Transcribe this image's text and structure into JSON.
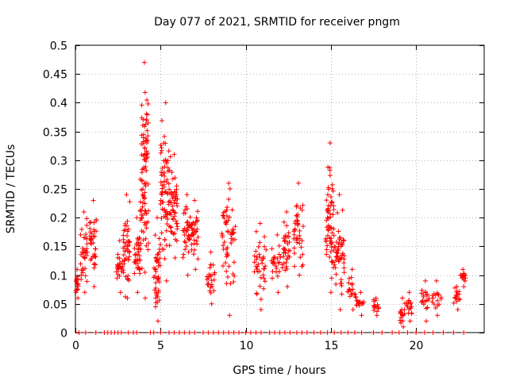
{
  "chart_data": {
    "type": "scatter",
    "title": "Day 077 of 2021, SRMTID for receiver pngm",
    "xlabel": "GPS time / hours",
    "ylabel": "SRMTID / TECUs",
    "xlim": [
      0,
      24
    ],
    "ylim": [
      0,
      0.5
    ],
    "xticks": [
      0,
      5,
      10,
      15,
      20
    ],
    "yticks": [
      0,
      0.05,
      0.1,
      0.15,
      0.2,
      0.25,
      0.3,
      0.35,
      0.4,
      0.45,
      0.5
    ],
    "ytick_labels": [
      "0",
      "0.05",
      "0.1",
      "0.15",
      "0.2",
      "0.25",
      "0.3",
      "0.35",
      "0.4",
      "0.45",
      "0.5"
    ],
    "xtick_labels": [
      "0",
      "5",
      "10",
      "15",
      "20"
    ],
    "grid": true,
    "marker": "+",
    "color": "#ff0000",
    "clusters": [
      {
        "x": [
          0.0,
          0.2
        ],
        "y": [
          0.06,
          0.11
        ]
      },
      {
        "x": [
          0.3,
          0.7
        ],
        "y": [
          0.07,
          0.21
        ]
      },
      {
        "x": [
          0.8,
          1.3
        ],
        "y": [
          0.08,
          0.23
        ]
      },
      {
        "x": [
          2.4,
          2.8
        ],
        "y": [
          0.07,
          0.16
        ]
      },
      {
        "x": [
          2.8,
          3.2
        ],
        "y": [
          0.06,
          0.24
        ]
      },
      {
        "x": [
          3.4,
          3.8
        ],
        "y": [
          0.07,
          0.2
        ]
      },
      {
        "x": [
          3.8,
          4.3
        ],
        "y": [
          0.06,
          0.47
        ]
      },
      {
        "x": [
          4.6,
          5.0
        ],
        "y": [
          0.02,
          0.2
        ]
      },
      {
        "x": [
          5.0,
          5.6
        ],
        "y": [
          0.09,
          0.4
        ]
      },
      {
        "x": [
          5.6,
          6.0
        ],
        "y": [
          0.13,
          0.31
        ]
      },
      {
        "x": [
          6.3,
          6.8
        ],
        "y": [
          0.1,
          0.24
        ]
      },
      {
        "x": [
          6.8,
          7.2
        ],
        "y": [
          0.11,
          0.23
        ]
      },
      {
        "x": [
          7.7,
          8.2
        ],
        "y": [
          0.05,
          0.14
        ]
      },
      {
        "x": [
          8.6,
          9.4
        ],
        "y": [
          0.03,
          0.26
        ]
      },
      {
        "x": [
          10.5,
          11.2
        ],
        "y": [
          0.04,
          0.19
        ]
      },
      {
        "x": [
          11.5,
          12.2
        ],
        "y": [
          0.07,
          0.17
        ]
      },
      {
        "x": [
          12.2,
          12.6
        ],
        "y": [
          0.08,
          0.21
        ]
      },
      {
        "x": [
          12.8,
          13.4
        ],
        "y": [
          0.1,
          0.26
        ]
      },
      {
        "x": [
          14.7,
          15.2
        ],
        "y": [
          0.07,
          0.33
        ]
      },
      {
        "x": [
          15.2,
          15.8
        ],
        "y": [
          0.04,
          0.24
        ]
      },
      {
        "x": [
          16.0,
          16.5
        ],
        "y": [
          0.04,
          0.11
        ]
      },
      {
        "x": [
          16.5,
          17.0
        ],
        "y": [
          0.03,
          0.07
        ]
      },
      {
        "x": [
          17.5,
          17.8
        ],
        "y": [
          0.03,
          0.06
        ]
      },
      {
        "x": [
          19.0,
          19.4
        ],
        "y": [
          0.01,
          0.06
        ]
      },
      {
        "x": [
          19.4,
          19.8
        ],
        "y": [
          0.02,
          0.07
        ]
      },
      {
        "x": [
          20.3,
          20.8
        ],
        "y": [
          0.02,
          0.09
        ]
      },
      {
        "x": [
          20.9,
          21.5
        ],
        "y": [
          0.03,
          0.09
        ]
      },
      {
        "x": [
          22.2,
          22.6
        ],
        "y": [
          0.04,
          0.08
        ]
      },
      {
        "x": [
          22.6,
          22.9
        ],
        "y": [
          0.08,
          0.11
        ]
      }
    ],
    "zero_markers_x": [
      0.2,
      0.6,
      1.2,
      1.7,
      1.9,
      2.1,
      2.3,
      2.5,
      2.7,
      3.1,
      3.4,
      3.6,
      4.4,
      4.6,
      5.0,
      5.5,
      5.8,
      6.1,
      6.4,
      6.7,
      7.0,
      7.5,
      7.8,
      8.1,
      8.4,
      8.7,
      9.0,
      9.3,
      9.6,
      10.0,
      10.3,
      10.6,
      10.9,
      11.4,
      11.7,
      12.0,
      12.3,
      12.6,
      13.0,
      13.3,
      13.6,
      14.0,
      14.4,
      14.8,
      15.2,
      15.6,
      16.0,
      16.4,
      16.8,
      17.5,
      18.0,
      18.6,
      19.0,
      19.5,
      20.0,
      20.5,
      21.0,
      21.6,
      22.2,
      22.8
    ],
    "zero_value": 0
  }
}
